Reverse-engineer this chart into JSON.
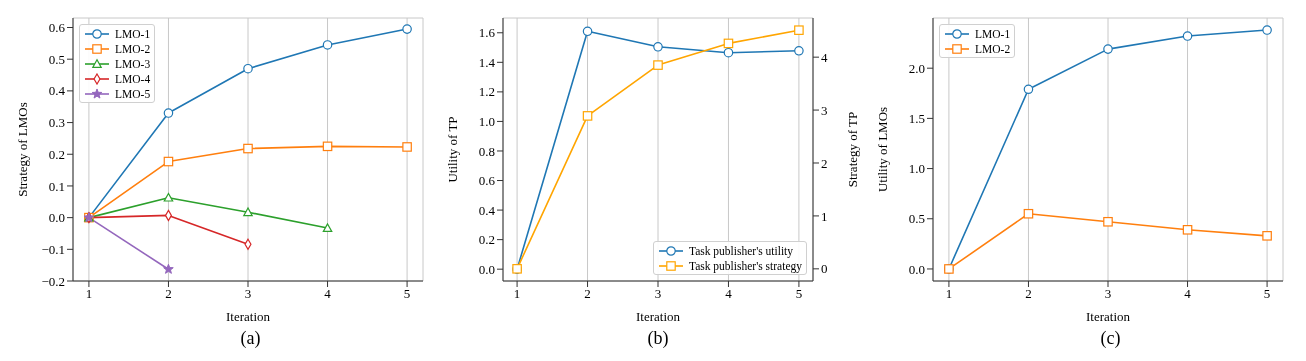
{
  "chart_data": [
    {
      "type": "line",
      "xlabel": "Iteration",
      "ylabel": "Strategy of LMOs",
      "annotations": [
        "(a)"
      ],
      "x": [
        1,
        2,
        3,
        4,
        5
      ],
      "xlim": [
        0.8,
        5.2
      ],
      "xticks": [
        1,
        2,
        3,
        4,
        5
      ],
      "ylim": [
        -0.2,
        0.63
      ],
      "yticks": [
        {
          "value": -0.2,
          "label": "−0.2"
        },
        {
          "value": -0.1,
          "label": "−0.1"
        },
        {
          "value": 0,
          "label": "0.0"
        },
        {
          "value": 0.1,
          "label": "0.1"
        },
        {
          "value": 0.2,
          "label": "0.2"
        },
        {
          "value": 0.3,
          "label": "0.3"
        },
        {
          "value": 0.4,
          "label": "0.4"
        },
        {
          "value": 0.5,
          "label": "0.5"
        },
        {
          "value": 0.6,
          "label": "0.6"
        }
      ],
      "grid": true,
      "legend": "top left",
      "line_style": "solid",
      "series": [
        {
          "name": "LMO-1",
          "color": "#1f77b4",
          "marker": "circle",
          "values": [
            0,
            0.33,
            0.47,
            0.545,
            0.595
          ]
        },
        {
          "name": "LMO-2",
          "color": "#ff7f0e",
          "marker": "square",
          "values": [
            0,
            0.177,
            0.218,
            0.225,
            0.223
          ]
        },
        {
          "name": "LMO-3",
          "color": "#2ca02c",
          "marker": "triangle",
          "values": [
            0,
            0.063,
            0.017,
            -0.033,
            null
          ]
        },
        {
          "name": "LMO-4",
          "color": "#d62728",
          "marker": "diamond",
          "values": [
            0,
            0.007,
            -0.084,
            null,
            null
          ]
        },
        {
          "name": "LMO-5",
          "color": "#9467bd",
          "marker": "star",
          "values": [
            0,
            -0.163,
            null,
            null,
            null
          ]
        }
      ]
    },
    {
      "type": "line",
      "xlabel": "Iteration",
      "ylabel": "Utility of TP",
      "y2label": "Strategy of TP",
      "annotations": [
        "(b)"
      ],
      "x": [
        1,
        2,
        3,
        4,
        5
      ],
      "xlim": [
        0.8,
        5.2
      ],
      "xticks": [
        1,
        2,
        3,
        4,
        5
      ],
      "ylim": [
        -0.08,
        1.7
      ],
      "yticks": [
        {
          "value": 0,
          "label": "0.0"
        },
        {
          "value": 0.2,
          "label": "0.2"
        },
        {
          "value": 0.4,
          "label": "0.4"
        },
        {
          "value": 0.6,
          "label": "0.6"
        },
        {
          "value": 0.8,
          "label": "0.8"
        },
        {
          "value": 1,
          "label": "1.0"
        },
        {
          "value": 1.2,
          "label": "1.2"
        },
        {
          "value": 1.4,
          "label": "1.4"
        },
        {
          "value": 1.6,
          "label": "1.6"
        }
      ],
      "y2lim": [
        -0.23,
        4.74
      ],
      "y2ticks": [
        0,
        1,
        2,
        3,
        4
      ],
      "grid": true,
      "legend": "bottom right",
      "line_style": "solid",
      "series": [
        {
          "name": "Task publisher's utility",
          "color": "#1f77b4",
          "marker": "circle",
          "values": [
            0,
            1.61,
            1.505,
            1.465,
            1.478
          ]
        },
        {
          "name": "Task publisher's strategy",
          "color": "#ffa500",
          "marker": "square",
          "axis": "y2",
          "values": [
            0,
            2.89,
            3.85,
            4.26,
            4.51
          ]
        }
      ]
    },
    {
      "type": "line",
      "xlabel": "Iteration",
      "ylabel": "Utility of LMOs",
      "annotations": [
        "(c)"
      ],
      "x": [
        1,
        2,
        3,
        4,
        5
      ],
      "xlim": [
        0.8,
        5.2
      ],
      "xticks": [
        1,
        2,
        3,
        4,
        5
      ],
      "ylim": [
        -0.12,
        2.5
      ],
      "yticks": [
        {
          "value": 0,
          "label": "0.0"
        },
        {
          "value": 0.5,
          "label": "0.5"
        },
        {
          "value": 1,
          "label": "1.0"
        },
        {
          "value": 1.5,
          "label": "1.5"
        },
        {
          "value": 2,
          "label": "2.0"
        }
      ],
      "grid": true,
      "legend": "top left",
      "line_style": "solid",
      "series": [
        {
          "name": "LMO-1",
          "color": "#1f77b4",
          "marker": "circle",
          "values": [
            0,
            1.79,
            2.19,
            2.32,
            2.38
          ]
        },
        {
          "name": "LMO-2",
          "color": "#ff7f0e",
          "marker": "square",
          "values": [
            0,
            0.55,
            0.47,
            0.39,
            0.33
          ]
        }
      ]
    }
  ]
}
